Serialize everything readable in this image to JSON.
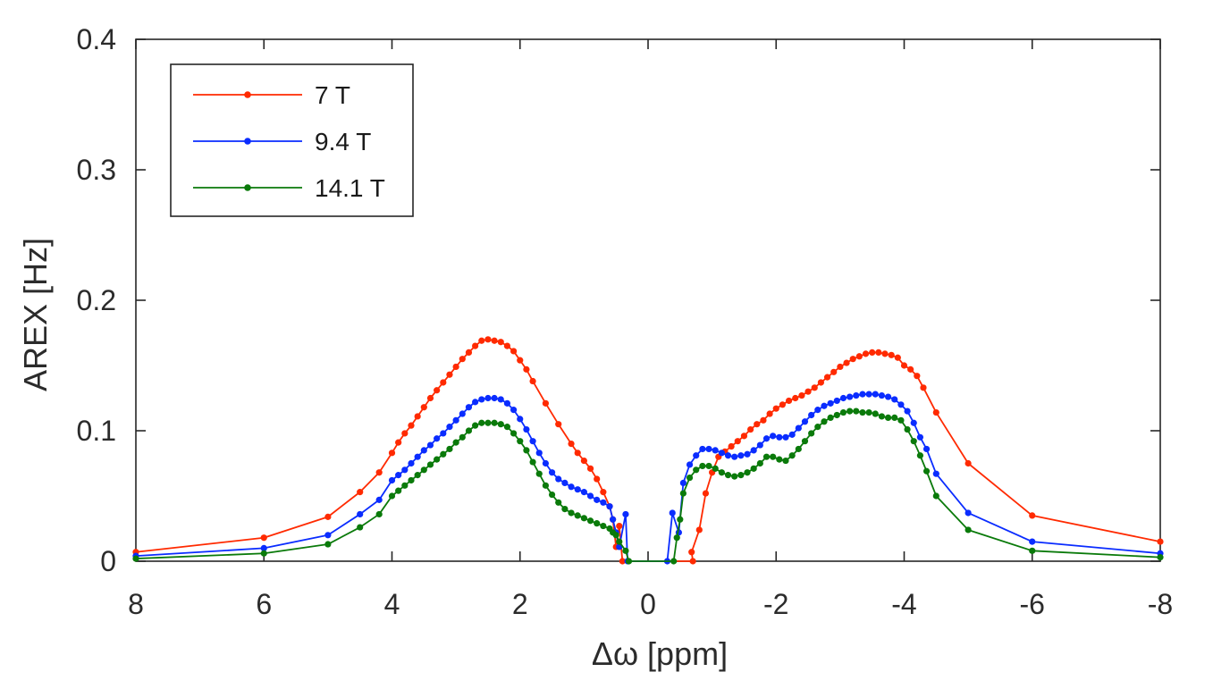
{
  "chart_data": {
    "type": "line",
    "title": "",
    "xlabel": "Δω [ppm]",
    "ylabel": "AREX [Hz]",
    "xlim": [
      8,
      -8
    ],
    "ylim": [
      0,
      0.4
    ],
    "x_ticks": [
      8,
      6,
      4,
      2,
      0,
      -2,
      -4,
      -6,
      -8
    ],
    "x_tick_labels": [
      "8",
      "6",
      "4",
      "2",
      "0",
      "-2",
      "-4",
      "-6",
      "-8"
    ],
    "y_ticks": [
      0,
      0.1,
      0.2,
      0.3,
      0.4
    ],
    "y_tick_labels": [
      "0",
      "0.1",
      "0.2",
      "0.3",
      "0.4"
    ],
    "legend_position": "top-left",
    "series": [
      {
        "name": "7 T",
        "color": "#ff2a00",
        "points": [
          [
            8,
            0.007
          ],
          [
            6,
            0.018
          ],
          [
            5,
            0.034
          ],
          [
            4.5,
            0.053
          ],
          [
            4.2,
            0.068
          ],
          [
            4,
            0.083
          ],
          [
            3.9,
            0.091
          ],
          [
            3.8,
            0.098
          ],
          [
            3.7,
            0.104
          ],
          [
            3.6,
            0.111
          ],
          [
            3.5,
            0.118
          ],
          [
            3.4,
            0.125
          ],
          [
            3.3,
            0.131
          ],
          [
            3.2,
            0.137
          ],
          [
            3.1,
            0.143
          ],
          [
            3.0,
            0.149
          ],
          [
            2.9,
            0.155
          ],
          [
            2.8,
            0.16
          ],
          [
            2.7,
            0.165
          ],
          [
            2.6,
            0.169
          ],
          [
            2.5,
            0.17
          ],
          [
            2.4,
            0.169
          ],
          [
            2.3,
            0.168
          ],
          [
            2.2,
            0.165
          ],
          [
            2.1,
            0.161
          ],
          [
            2.0,
            0.154
          ],
          [
            1.9,
            0.147
          ],
          [
            1.8,
            0.138
          ],
          [
            1.6,
            0.121
          ],
          [
            1.4,
            0.105
          ],
          [
            1.2,
            0.09
          ],
          [
            1.1,
            0.083
          ],
          [
            1.0,
            0.077
          ],
          [
            0.9,
            0.071
          ],
          [
            0.8,
            0.063
          ],
          [
            0.7,
            0.053
          ],
          [
            0.6,
            0.042
          ],
          [
            0.55,
            0.032
          ],
          [
            0.5,
            0.011
          ],
          [
            0.45,
            0.027
          ],
          [
            0.4,
            0.0
          ],
          [
            -0.7,
            0.0
          ],
          [
            -0.68,
            0.007
          ],
          [
            -0.8,
            0.024
          ],
          [
            -0.9,
            0.052
          ],
          [
            -1.0,
            0.068
          ],
          [
            -1.1,
            0.08
          ],
          [
            -1.2,
            0.084
          ],
          [
            -1.3,
            0.088
          ],
          [
            -1.4,
            0.092
          ],
          [
            -1.5,
            0.096
          ],
          [
            -1.6,
            0.101
          ],
          [
            -1.7,
            0.105
          ],
          [
            -1.8,
            0.108
          ],
          [
            -1.9,
            0.113
          ],
          [
            -2.0,
            0.117
          ],
          [
            -2.1,
            0.12
          ],
          [
            -2.2,
            0.123
          ],
          [
            -2.3,
            0.125
          ],
          [
            -2.4,
            0.127
          ],
          [
            -2.5,
            0.13
          ],
          [
            -2.6,
            0.133
          ],
          [
            -2.7,
            0.137
          ],
          [
            -2.8,
            0.141
          ],
          [
            -2.9,
            0.145
          ],
          [
            -3.0,
            0.149
          ],
          [
            -3.1,
            0.152
          ],
          [
            -3.2,
            0.155
          ],
          [
            -3.3,
            0.157
          ],
          [
            -3.4,
            0.159
          ],
          [
            -3.5,
            0.16
          ],
          [
            -3.6,
            0.16
          ],
          [
            -3.7,
            0.159
          ],
          [
            -3.8,
            0.158
          ],
          [
            -3.9,
            0.156
          ],
          [
            -4.0,
            0.15
          ],
          [
            -4.1,
            0.147
          ],
          [
            -4.2,
            0.142
          ],
          [
            -4.3,
            0.133
          ],
          [
            -4.5,
            0.114
          ],
          [
            -5.0,
            0.075
          ],
          [
            -6.0,
            0.035
          ],
          [
            -8.0,
            0.015
          ]
        ]
      },
      {
        "name": "9.4 T",
        "color": "#0a2cff",
        "points": [
          [
            8,
            0.004
          ],
          [
            6,
            0.01
          ],
          [
            5,
            0.02
          ],
          [
            4.5,
            0.036
          ],
          [
            4.2,
            0.047
          ],
          [
            4,
            0.062
          ],
          [
            3.9,
            0.066
          ],
          [
            3.8,
            0.07
          ],
          [
            3.7,
            0.075
          ],
          [
            3.6,
            0.08
          ],
          [
            3.5,
            0.085
          ],
          [
            3.4,
            0.089
          ],
          [
            3.3,
            0.094
          ],
          [
            3.2,
            0.098
          ],
          [
            3.1,
            0.103
          ],
          [
            3.0,
            0.108
          ],
          [
            2.9,
            0.113
          ],
          [
            2.8,
            0.118
          ],
          [
            2.7,
            0.122
          ],
          [
            2.6,
            0.124
          ],
          [
            2.5,
            0.125
          ],
          [
            2.4,
            0.125
          ],
          [
            2.3,
            0.124
          ],
          [
            2.2,
            0.121
          ],
          [
            2.1,
            0.116
          ],
          [
            2.0,
            0.109
          ],
          [
            1.9,
            0.101
          ],
          [
            1.8,
            0.092
          ],
          [
            1.7,
            0.083
          ],
          [
            1.6,
            0.075
          ],
          [
            1.5,
            0.068
          ],
          [
            1.4,
            0.063
          ],
          [
            1.3,
            0.06
          ],
          [
            1.2,
            0.057
          ],
          [
            1.1,
            0.055
          ],
          [
            1.0,
            0.053
          ],
          [
            0.9,
            0.05
          ],
          [
            0.8,
            0.047
          ],
          [
            0.7,
            0.045
          ],
          [
            0.6,
            0.042
          ],
          [
            0.55,
            0.032
          ],
          [
            0.5,
            0.022
          ],
          [
            0.45,
            0.011
          ],
          [
            0.35,
            0.036
          ],
          [
            0.32,
            0.0
          ],
          [
            -0.3,
            0.0
          ],
          [
            -0.38,
            0.037
          ],
          [
            -0.48,
            0.022
          ],
          [
            -0.55,
            0.06
          ],
          [
            -0.65,
            0.074
          ],
          [
            -0.75,
            0.081
          ],
          [
            -0.85,
            0.086
          ],
          [
            -0.95,
            0.086
          ],
          [
            -1.05,
            0.085
          ],
          [
            -1.15,
            0.083
          ],
          [
            -1.25,
            0.081
          ],
          [
            -1.35,
            0.08
          ],
          [
            -1.45,
            0.081
          ],
          [
            -1.55,
            0.082
          ],
          [
            -1.65,
            0.085
          ],
          [
            -1.75,
            0.089
          ],
          [
            -1.85,
            0.094
          ],
          [
            -1.95,
            0.096
          ],
          [
            -2.05,
            0.095
          ],
          [
            -2.15,
            0.095
          ],
          [
            -2.25,
            0.097
          ],
          [
            -2.35,
            0.102
          ],
          [
            -2.45,
            0.107
          ],
          [
            -2.55,
            0.112
          ],
          [
            -2.65,
            0.116
          ],
          [
            -2.75,
            0.119
          ],
          [
            -2.85,
            0.121
          ],
          [
            -2.95,
            0.123
          ],
          [
            -3.05,
            0.125
          ],
          [
            -3.15,
            0.126
          ],
          [
            -3.25,
            0.127
          ],
          [
            -3.35,
            0.128
          ],
          [
            -3.45,
            0.128
          ],
          [
            -3.55,
            0.128
          ],
          [
            -3.65,
            0.127
          ],
          [
            -3.75,
            0.126
          ],
          [
            -3.85,
            0.124
          ],
          [
            -3.95,
            0.12
          ],
          [
            -4.05,
            0.115
          ],
          [
            -4.15,
            0.106
          ],
          [
            -4.25,
            0.095
          ],
          [
            -4.35,
            0.086
          ],
          [
            -4.5,
            0.067
          ],
          [
            -5.0,
            0.037
          ],
          [
            -6.0,
            0.015
          ],
          [
            -8.0,
            0.006
          ]
        ]
      },
      {
        "name": "14.1 T",
        "color": "#0a7a0a",
        "points": [
          [
            8,
            0.002
          ],
          [
            6,
            0.006
          ],
          [
            5,
            0.013
          ],
          [
            4.5,
            0.026
          ],
          [
            4.2,
            0.036
          ],
          [
            4,
            0.05
          ],
          [
            3.9,
            0.054
          ],
          [
            3.8,
            0.058
          ],
          [
            3.7,
            0.062
          ],
          [
            3.6,
            0.066
          ],
          [
            3.5,
            0.07
          ],
          [
            3.4,
            0.074
          ],
          [
            3.3,
            0.078
          ],
          [
            3.2,
            0.082
          ],
          [
            3.1,
            0.086
          ],
          [
            3.0,
            0.091
          ],
          [
            2.9,
            0.095
          ],
          [
            2.8,
            0.1
          ],
          [
            2.7,
            0.104
          ],
          [
            2.6,
            0.106
          ],
          [
            2.5,
            0.106
          ],
          [
            2.4,
            0.106
          ],
          [
            2.3,
            0.105
          ],
          [
            2.2,
            0.103
          ],
          [
            2.1,
            0.098
          ],
          [
            2.0,
            0.092
          ],
          [
            1.9,
            0.085
          ],
          [
            1.8,
            0.076
          ],
          [
            1.7,
            0.067
          ],
          [
            1.6,
            0.058
          ],
          [
            1.5,
            0.051
          ],
          [
            1.4,
            0.045
          ],
          [
            1.3,
            0.04
          ],
          [
            1.2,
            0.037
          ],
          [
            1.1,
            0.035
          ],
          [
            1.0,
            0.033
          ],
          [
            0.9,
            0.031
          ],
          [
            0.8,
            0.029
          ],
          [
            0.7,
            0.027
          ],
          [
            0.6,
            0.025
          ],
          [
            0.55,
            0.022
          ],
          [
            0.5,
            0.02
          ],
          [
            0.45,
            0.015
          ],
          [
            0.35,
            0.008
          ],
          [
            0.3,
            0.0
          ],
          [
            -0.4,
            0.0
          ],
          [
            -0.45,
            0.018
          ],
          [
            -0.5,
            0.032
          ],
          [
            -0.55,
            0.052
          ],
          [
            -0.65,
            0.064
          ],
          [
            -0.75,
            0.07
          ],
          [
            -0.85,
            0.073
          ],
          [
            -0.95,
            0.073
          ],
          [
            -1.05,
            0.071
          ],
          [
            -1.15,
            0.068
          ],
          [
            -1.25,
            0.066
          ],
          [
            -1.35,
            0.065
          ],
          [
            -1.45,
            0.066
          ],
          [
            -1.55,
            0.068
          ],
          [
            -1.65,
            0.071
          ],
          [
            -1.75,
            0.075
          ],
          [
            -1.85,
            0.08
          ],
          [
            -1.95,
            0.08
          ],
          [
            -2.05,
            0.078
          ],
          [
            -2.15,
            0.077
          ],
          [
            -2.25,
            0.081
          ],
          [
            -2.35,
            0.086
          ],
          [
            -2.45,
            0.092
          ],
          [
            -2.55,
            0.098
          ],
          [
            -2.65,
            0.103
          ],
          [
            -2.75,
            0.107
          ],
          [
            -2.85,
            0.11
          ],
          [
            -2.95,
            0.112
          ],
          [
            -3.05,
            0.114
          ],
          [
            -3.15,
            0.115
          ],
          [
            -3.25,
            0.115
          ],
          [
            -3.35,
            0.114
          ],
          [
            -3.45,
            0.114
          ],
          [
            -3.55,
            0.113
          ],
          [
            -3.65,
            0.111
          ],
          [
            -3.75,
            0.11
          ],
          [
            -3.85,
            0.11
          ],
          [
            -3.95,
            0.108
          ],
          [
            -4.05,
            0.101
          ],
          [
            -4.15,
            0.092
          ],
          [
            -4.25,
            0.081
          ],
          [
            -4.35,
            0.069
          ],
          [
            -4.5,
            0.05
          ],
          [
            -5.0,
            0.024
          ],
          [
            -6.0,
            0.008
          ],
          [
            -8.0,
            0.003
          ]
        ]
      }
    ]
  }
}
